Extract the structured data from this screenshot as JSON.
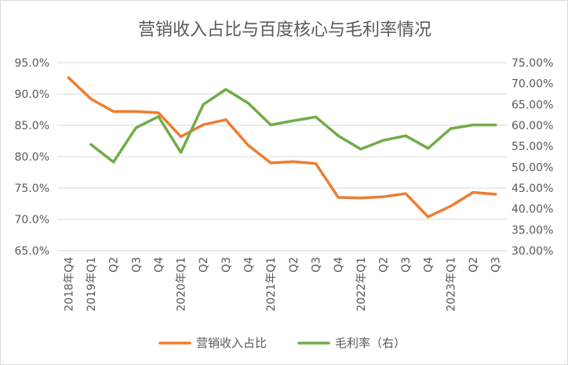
{
  "chart_data": {
    "type": "line",
    "title": "营销收入占比与百度核心与毛利率情况",
    "categories": [
      "2018年Q4",
      "2019年Q1",
      "Q2",
      "Q3",
      "Q4",
      "2020年Q1",
      "Q2",
      "Q3",
      "Q4",
      "2021年Q1",
      "Q2",
      "Q3",
      "Q4",
      "2022年Q1",
      "Q2",
      "Q3",
      "Q4",
      "2023年Q1",
      "Q2",
      "Q3"
    ],
    "series": [
      {
        "name": "营销收入占比",
        "axis": "left",
        "color": "#ED7D31",
        "values": [
          92.6,
          89.2,
          87.2,
          87.2,
          87.0,
          83.2,
          85.1,
          85.9,
          81.8,
          79.0,
          79.2,
          78.9,
          73.5,
          73.4,
          73.6,
          74.1,
          70.4,
          72.1,
          74.3,
          74.0
        ]
      },
      {
        "name": "毛利率（右）",
        "axis": "right",
        "color": "#70AD47",
        "values": [
          null,
          55.4,
          51.2,
          59.4,
          62.1,
          53.5,
          65.0,
          68.6,
          65.3,
          60.1,
          61.1,
          62.0,
          57.5,
          54.3,
          56.4,
          57.5,
          54.5,
          59.2,
          60.1,
          60.1
        ]
      }
    ],
    "y_left": {
      "min": 65,
      "max": 95,
      "step": 5,
      "tick_labels": [
        "65.0%",
        "70.0%",
        "75.0%",
        "80.0%",
        "85.0%",
        "90.0%",
        "95.0%"
      ]
    },
    "y_right": {
      "min": 30,
      "max": 75,
      "step": 5,
      "tick_labels": [
        "30.00%",
        "35.00%",
        "40.00%",
        "45.00%",
        "50.00%",
        "55.00%",
        "60.00%",
        "65.00%",
        "70.00%",
        "75.00%"
      ]
    },
    "grid": true,
    "legend_position": "bottom",
    "colors": {
      "gridline": "#d9d9d9",
      "text": "#595959"
    }
  }
}
